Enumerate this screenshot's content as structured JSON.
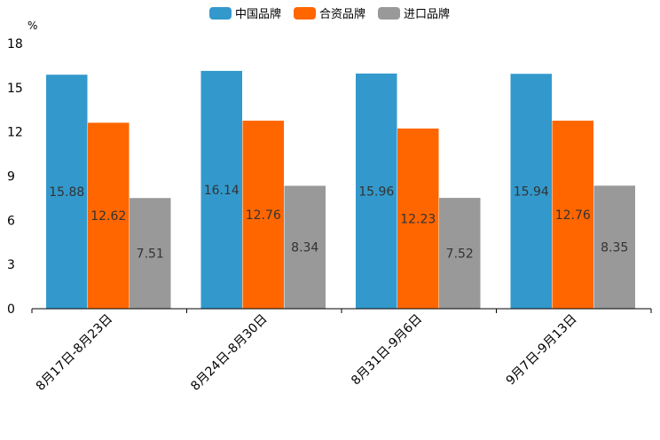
{
  "chart_data": {
    "type": "bar",
    "unit": "%",
    "categories": [
      "8月17日-8月23日",
      "8月24日-8月30日",
      "8月31日-9月6日",
      "9月7日-9月13日"
    ],
    "series": [
      {
        "name": "中国品牌",
        "color": "#3399cc",
        "values": [
          15.88,
          16.14,
          15.96,
          15.94
        ]
      },
      {
        "name": "合资品牌",
        "color": "#ff6600",
        "values": [
          12.62,
          12.76,
          12.23,
          12.76
        ]
      },
      {
        "name": "进口品牌",
        "color": "#999999",
        "values": [
          7.51,
          8.34,
          7.52,
          8.35
        ]
      }
    ],
    "ylim": [
      0,
      18
    ],
    "yticks": [
      0,
      3,
      6,
      9,
      12,
      15,
      18
    ],
    "legend_position": "top-center"
  }
}
